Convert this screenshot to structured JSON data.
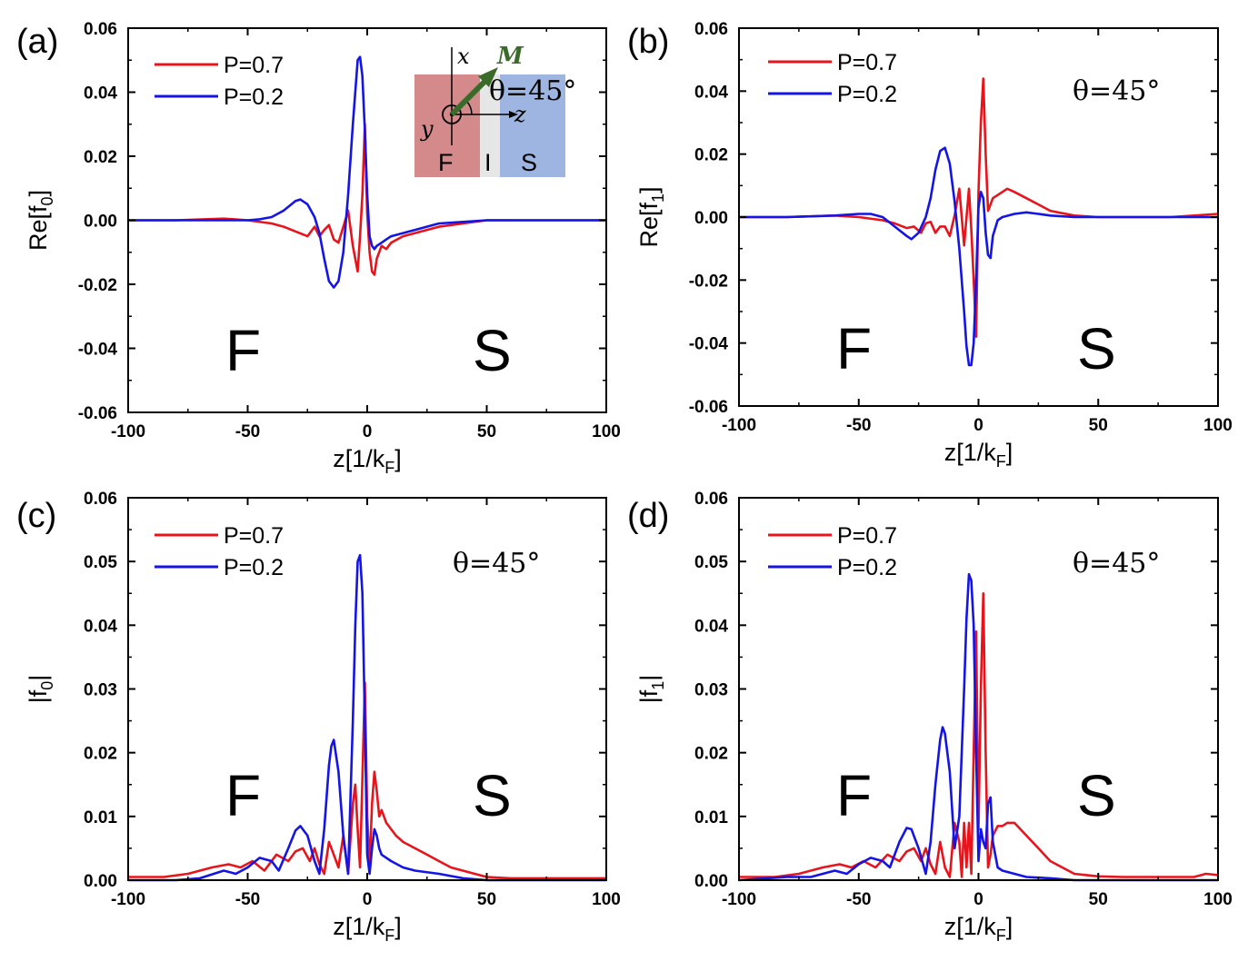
{
  "colors": {
    "series_p07": "#e8141c",
    "series_p02": "#1414e6",
    "axis": "#000000",
    "inset_F": "#d48a8a",
    "inset_I": "#e6e6e6",
    "inset_S": "#9db5e0",
    "inset_M": "#3a6b2a"
  },
  "inset": {
    "axis_x": "x",
    "axis_y": "y",
    "axis_z": "z",
    "vector": "M",
    "theta": "θ=45°",
    "layer_F": "F",
    "layer_I": "I",
    "layer_S": "S"
  },
  "chart_data": [
    {
      "panel": "(a)",
      "type": "line",
      "xlabel": "z[1/k",
      "xlabel_sub": "F",
      "xlabel_end": "]",
      "ylabel": "Re[f",
      "ylabel_sub": "0",
      "ylabel_end": "]",
      "xlim": [
        -100,
        100
      ],
      "ylim": [
        -0.06,
        0.06
      ],
      "xticks": [
        "-100",
        "-50",
        "0",
        "50",
        "100"
      ],
      "yticks": [
        "-0.06",
        "-0.04",
        "-0.02",
        "0.00",
        "0.02",
        "0.04",
        "0.06"
      ],
      "region_left": "F",
      "region_right": "S",
      "theta": "",
      "legend": [
        "P=0.7",
        "P=0.2"
      ],
      "series": [
        {
          "name": "P=0.7",
          "color": "#e8141c",
          "x": [
            -100,
            -80,
            -60,
            -50,
            -40,
            -35,
            -30,
            -25,
            -22,
            -20,
            -18,
            -16,
            -14,
            -12,
            -10,
            -8,
            -6,
            -4,
            -3,
            -2,
            -1,
            0,
            1,
            2,
            3,
            4,
            6,
            8,
            10,
            15,
            20,
            25,
            30,
            40,
            50,
            60,
            70,
            80,
            90,
            100
          ],
          "y": [
            0,
            0,
            0.0005,
            0,
            -0.001,
            -0.002,
            -0.0035,
            -0.005,
            -0.002,
            -0.005,
            -0.003,
            -0.0015,
            -0.006,
            -0.007,
            -0.002,
            0.003,
            -0.008,
            -0.016,
            -0.005,
            0.008,
            0.03,
            0.002,
            -0.01,
            -0.016,
            -0.017,
            -0.012,
            -0.008,
            -0.009,
            -0.007,
            -0.005,
            -0.004,
            -0.003,
            -0.002,
            -0.001,
            0,
            0,
            0,
            0,
            0,
            0
          ]
        },
        {
          "name": "P=0.2",
          "color": "#1414e6",
          "x": [
            -100,
            -80,
            -60,
            -50,
            -45,
            -40,
            -35,
            -30,
            -28,
            -25,
            -22,
            -20,
            -18,
            -16,
            -14,
            -12,
            -10,
            -8,
            -6,
            -4,
            -3,
            -2,
            -1,
            0,
            1,
            2,
            3,
            4,
            6,
            8,
            10,
            15,
            20,
            30,
            40,
            50,
            60,
            70,
            80,
            90,
            100
          ],
          "y": [
            0,
            0,
            0,
            0,
            0.0003,
            0.001,
            0.003,
            0.006,
            0.0065,
            0.005,
            0.001,
            -0.004,
            -0.012,
            -0.019,
            -0.021,
            -0.019,
            -0.01,
            0.008,
            0.03,
            0.05,
            0.051,
            0.045,
            0.028,
            0.008,
            -0.005,
            -0.008,
            -0.009,
            -0.008,
            -0.007,
            -0.006,
            -0.005,
            -0.004,
            -0.003,
            -0.001,
            -0.0005,
            0,
            0,
            0,
            0,
            0,
            0
          ]
        }
      ]
    },
    {
      "panel": "(b)",
      "type": "line",
      "xlabel": "z[1/k",
      "xlabel_sub": "F",
      "xlabel_end": "]",
      "ylabel": "Re[f",
      "ylabel_sub": "1",
      "ylabel_end": "]",
      "xlim": [
        -100,
        100
      ],
      "ylim": [
        -0.06,
        0.06
      ],
      "xticks": [
        "-100",
        "-50",
        "0",
        "50",
        "100"
      ],
      "yticks": [
        "-0.06",
        "-0.04",
        "-0.02",
        "0.00",
        "0.02",
        "0.04",
        "0.06"
      ],
      "region_left": "F",
      "region_right": "S",
      "theta": "θ=45°",
      "legend": [
        "P=0.7",
        "P=0.2"
      ],
      "series": [
        {
          "name": "P=0.7",
          "color": "#e8141c",
          "x": [
            -100,
            -80,
            -60,
            -50,
            -40,
            -35,
            -30,
            -27,
            -24,
            -22,
            -20,
            -18,
            -16,
            -14,
            -12,
            -10,
            -8,
            -6,
            -4,
            -3,
            -2,
            -1,
            0,
            1,
            2,
            3,
            4,
            5,
            6,
            8,
            10,
            12,
            15,
            20,
            25,
            30,
            40,
            50,
            60,
            70,
            80,
            90,
            100
          ],
          "y": [
            0,
            0,
            0.0005,
            0,
            -0.001,
            -0.002,
            -0.0035,
            -0.003,
            -0.005,
            -0.002,
            -0.0015,
            -0.005,
            -0.003,
            -0.003,
            -0.006,
            0.0005,
            0.009,
            -0.009,
            0.009,
            -0.004,
            -0.02,
            -0.038,
            0.008,
            0.03,
            0.044,
            0.02,
            0.002,
            0.004,
            0.006,
            0.007,
            0.008,
            0.009,
            0.008,
            0.006,
            0.004,
            0.002,
            0.0005,
            0,
            0,
            0,
            0,
            0.0005,
            0.001
          ]
        },
        {
          "name": "P=0.2",
          "color": "#1414e6",
          "x": [
            -100,
            -80,
            -60,
            -50,
            -45,
            -40,
            -35,
            -30,
            -28,
            -25,
            -22,
            -20,
            -18,
            -16,
            -14,
            -12,
            -10,
            -8,
            -6,
            -5,
            -4,
            -3,
            -2,
            -1,
            0,
            1,
            2,
            3,
            4,
            5,
            6,
            8,
            10,
            15,
            20,
            25,
            30,
            40,
            50,
            60,
            70,
            80,
            90,
            100
          ],
          "y": [
            0,
            0,
            0.0005,
            0.001,
            0.001,
            0,
            -0.003,
            -0.006,
            -0.007,
            -0.005,
            0,
            0.006,
            0.015,
            0.021,
            0.022,
            0.017,
            0.005,
            -0.01,
            -0.03,
            -0.041,
            -0.047,
            -0.047,
            -0.04,
            -0.02,
            0.003,
            0.008,
            0.006,
            -0.005,
            -0.012,
            -0.013,
            -0.006,
            -0.001,
            0,
            0.001,
            0.0015,
            0.001,
            0.0005,
            0,
            0,
            0,
            0,
            0,
            0,
            0
          ]
        }
      ]
    },
    {
      "panel": "(c)",
      "type": "line",
      "xlabel": "z[1/k",
      "xlabel_sub": "F",
      "xlabel_end": "]",
      "ylabel": "|f",
      "ylabel_sub": "0",
      "ylabel_end": "|",
      "xlim": [
        -100,
        100
      ],
      "ylim": [
        0,
        0.06
      ],
      "xticks": [
        "-100",
        "-50",
        "0",
        "50",
        "100"
      ],
      "yticks": [
        "0.00",
        "0.01",
        "0.02",
        "0.03",
        "0.04",
        "0.05",
        "0.06"
      ],
      "region_left": "F",
      "region_right": "S",
      "theta": "θ=45°",
      "legend": [
        "P=0.7",
        "P=0.2"
      ],
      "series": [
        {
          "name": "P=0.7",
          "color": "#e8141c",
          "x": [
            -100,
            -85,
            -75,
            -65,
            -58,
            -53,
            -48,
            -43,
            -38,
            -33,
            -30,
            -27,
            -24,
            -22,
            -20,
            -18,
            -16,
            -14,
            -12,
            -10,
            -8,
            -6,
            -5,
            -4,
            -3,
            -2,
            -1,
            0,
            1,
            2,
            3,
            4,
            5,
            6,
            8,
            10,
            12,
            15,
            20,
            25,
            30,
            35,
            40,
            45,
            50,
            60,
            70,
            80,
            90,
            100
          ],
          "y": [
            0.0005,
            0.0005,
            0.001,
            0.002,
            0.0025,
            0.002,
            0.003,
            0.0015,
            0.004,
            0.003,
            0.0045,
            0.005,
            0.003,
            0.005,
            0.0025,
            0.001,
            0.006,
            0.004,
            0.002,
            0.007,
            0.001,
            0.012,
            0.015,
            0.008,
            0.002,
            0.016,
            0.031,
            0.01,
            0.002,
            0.012,
            0.017,
            0.014,
            0.01,
            0.011,
            0.009,
            0.008,
            0.007,
            0.006,
            0.005,
            0.004,
            0.003,
            0.002,
            0.0015,
            0.001,
            0.0005,
            0.0003,
            0.0003,
            0.0003,
            0.0003,
            0.0003
          ]
        },
        {
          "name": "P=0.2",
          "color": "#1414e6",
          "x": [
            -100,
            -80,
            -70,
            -60,
            -55,
            -50,
            -45,
            -40,
            -37,
            -33,
            -30,
            -28,
            -25,
            -22,
            -20,
            -18,
            -16,
            -15,
            -14,
            -12,
            -10,
            -8,
            -6,
            -5,
            -4,
            -3,
            -2,
            -1,
            0,
            1,
            2,
            3,
            4,
            5,
            6,
            8,
            10,
            15,
            20,
            30,
            40,
            50,
            60,
            70,
            80,
            90,
            100
          ],
          "y": [
            0,
            0,
            0.0003,
            0.0015,
            0.001,
            0.002,
            0.0035,
            0.003,
            0.0015,
            0.005,
            0.0078,
            0.0085,
            0.007,
            0.003,
            0.001,
            0.008,
            0.018,
            0.021,
            0.022,
            0.017,
            0.007,
            0.001,
            0.025,
            0.04,
            0.05,
            0.051,
            0.045,
            0.025,
            0.004,
            0.001,
            0.005,
            0.008,
            0.007,
            0.005,
            0.004,
            0.0035,
            0.003,
            0.002,
            0.0015,
            0.001,
            0.0003,
            0,
            0,
            0,
            0,
            0,
            0
          ]
        }
      ]
    },
    {
      "panel": "(d)",
      "type": "line",
      "xlabel": "z[1/k",
      "xlabel_sub": "F",
      "xlabel_end": "]",
      "ylabel": "|f",
      "ylabel_sub": "1",
      "ylabel_end": "|",
      "xlim": [
        -100,
        100
      ],
      "ylim": [
        0,
        0.06
      ],
      "xticks": [
        "-100",
        "-50",
        "0",
        "50",
        "100"
      ],
      "yticks": [
        "0.00",
        "0.01",
        "0.02",
        "0.03",
        "0.04",
        "0.05",
        "0.06"
      ],
      "region_left": "F",
      "region_right": "S",
      "theta": "θ=45°",
      "legend": [
        "P=0.7",
        "P=0.2"
      ],
      "series": [
        {
          "name": "P=0.7",
          "color": "#e8141c",
          "x": [
            -100,
            -85,
            -75,
            -65,
            -58,
            -53,
            -48,
            -43,
            -38,
            -33,
            -30,
            -27,
            -24,
            -22,
            -20,
            -18,
            -16,
            -14,
            -12,
            -10,
            -8,
            -7,
            -6,
            -5,
            -4,
            -3,
            -2,
            -1,
            0,
            1,
            2,
            3,
            4,
            5,
            6,
            8,
            10,
            12,
            15,
            20,
            25,
            30,
            35,
            40,
            45,
            50,
            60,
            70,
            80,
            90,
            95,
            100
          ],
          "y": [
            0.0005,
            0.0005,
            0.001,
            0.002,
            0.0025,
            0.002,
            0.003,
            0.002,
            0.004,
            0.003,
            0.0045,
            0.005,
            0.003,
            0.005,
            0.0025,
            0.001,
            0.006,
            0.002,
            0.0005,
            0.009,
            0.006,
            0.0005,
            0.009,
            0.002,
            0.009,
            0.001,
            0.02,
            0.039,
            0.008,
            0.03,
            0.045,
            0.02,
            0.002,
            0.004,
            0.007,
            0.0085,
            0.0085,
            0.009,
            0.009,
            0.007,
            0.005,
            0.003,
            0.002,
            0.001,
            0.0008,
            0.0006,
            0.0005,
            0.0005,
            0.0005,
            0.0005,
            0.001,
            0.0008
          ]
        },
        {
          "name": "P=0.2",
          "color": "#1414e6",
          "x": [
            -100,
            -80,
            -70,
            -65,
            -60,
            -55,
            -50,
            -45,
            -40,
            -37,
            -33,
            -30,
            -28,
            -25,
            -22,
            -20,
            -18,
            -16,
            -15,
            -14,
            -12,
            -10,
            -8,
            -6,
            -5,
            -4,
            -3,
            -2,
            -1,
            0,
            1,
            2,
            3,
            4,
            5,
            6,
            8,
            10,
            15,
            20,
            30,
            40,
            50,
            60,
            70,
            80,
            90,
            100
          ],
          "y": [
            0,
            0.0005,
            0.0005,
            0.001,
            0.0015,
            0.001,
            0.0025,
            0.0035,
            0.003,
            0.002,
            0.006,
            0.0082,
            0.008,
            0.005,
            0.001,
            0.006,
            0.015,
            0.022,
            0.024,
            0.023,
            0.017,
            0.005,
            0.01,
            0.03,
            0.041,
            0.048,
            0.047,
            0.04,
            0.02,
            0.003,
            0.008,
            0.006,
            0.005,
            0.012,
            0.013,
            0.006,
            0.002,
            0.0015,
            0.001,
            0.0005,
            0.0003,
            0,
            0,
            0,
            0,
            0,
            0,
            0
          ]
        }
      ]
    }
  ]
}
